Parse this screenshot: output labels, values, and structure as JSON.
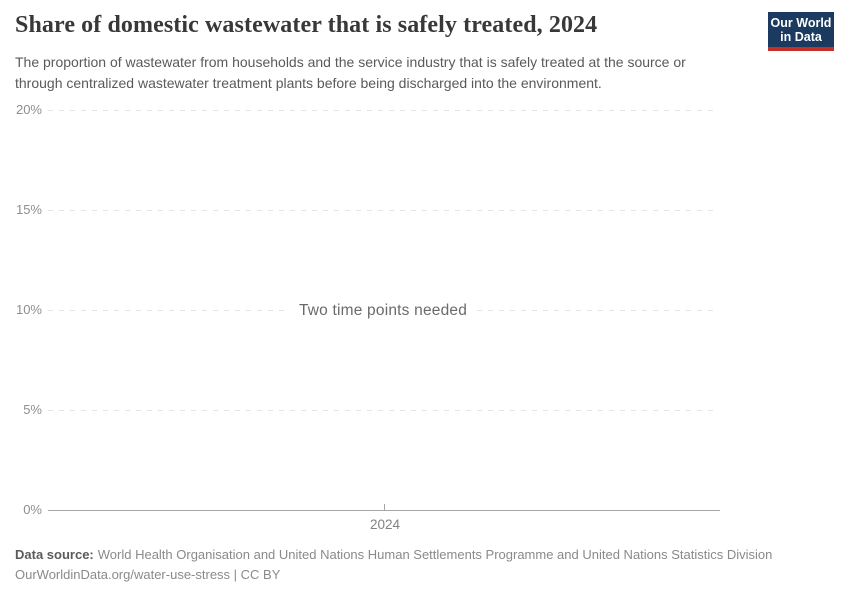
{
  "header": {
    "title": "Share of domestic wastewater that is safely treated, 2024",
    "subtitle_lines": [
      "The proportion of wastewater from households and the service industry that is safely treated at the source or",
      "through centralized wastewater treatment plants before being discharged into the environment."
    ],
    "logo": {
      "line1": "Our World",
      "line2": "in Data",
      "bg_color": "#1a3a5f",
      "accent_color": "#c52f2a"
    }
  },
  "chart": {
    "empty_message": "Two time points needed",
    "y_ticks": [
      "20%",
      "15%",
      "10%",
      "5%",
      "0%"
    ],
    "x_tick": "2024"
  },
  "chart_data": {
    "type": "line",
    "title": "Share of domestic wastewater that is safely treated, 2024",
    "subtitle": "The proportion of wastewater from households and the service industry that is safely treated at the source or through centralized wastewater treatment plants before being discharged into the environment.",
    "series": [],
    "x": [
      2024
    ],
    "xticks": [
      "2024"
    ],
    "yticks": [
      "0%",
      "5%",
      "10%",
      "15%",
      "20%"
    ],
    "ylim": [
      0,
      20
    ],
    "xlabel": "",
    "ylabel": "",
    "grid": "horizontal-dashed",
    "legend_position": "none",
    "annotation": "Two time points needed (no data series plotted)"
  },
  "footer": {
    "source_label": "Data source:",
    "source_text": "World Health Organisation and United Nations Human Settlements Programme and United Nations Statistics Division",
    "citation": "OurWorldinData.org/water-use-stress | CC BY"
  },
  "colors": {
    "title_text": "#383838",
    "subtitle_text": "#5a5a5a",
    "tick_text": "#8e8e8e",
    "gridline": "#e4e4e4",
    "axis_line": "#a6a6a6",
    "empty_message_text": "#6a6a6a",
    "logo_navy": "#1a3a5f",
    "logo_red": "#c52f2a"
  }
}
